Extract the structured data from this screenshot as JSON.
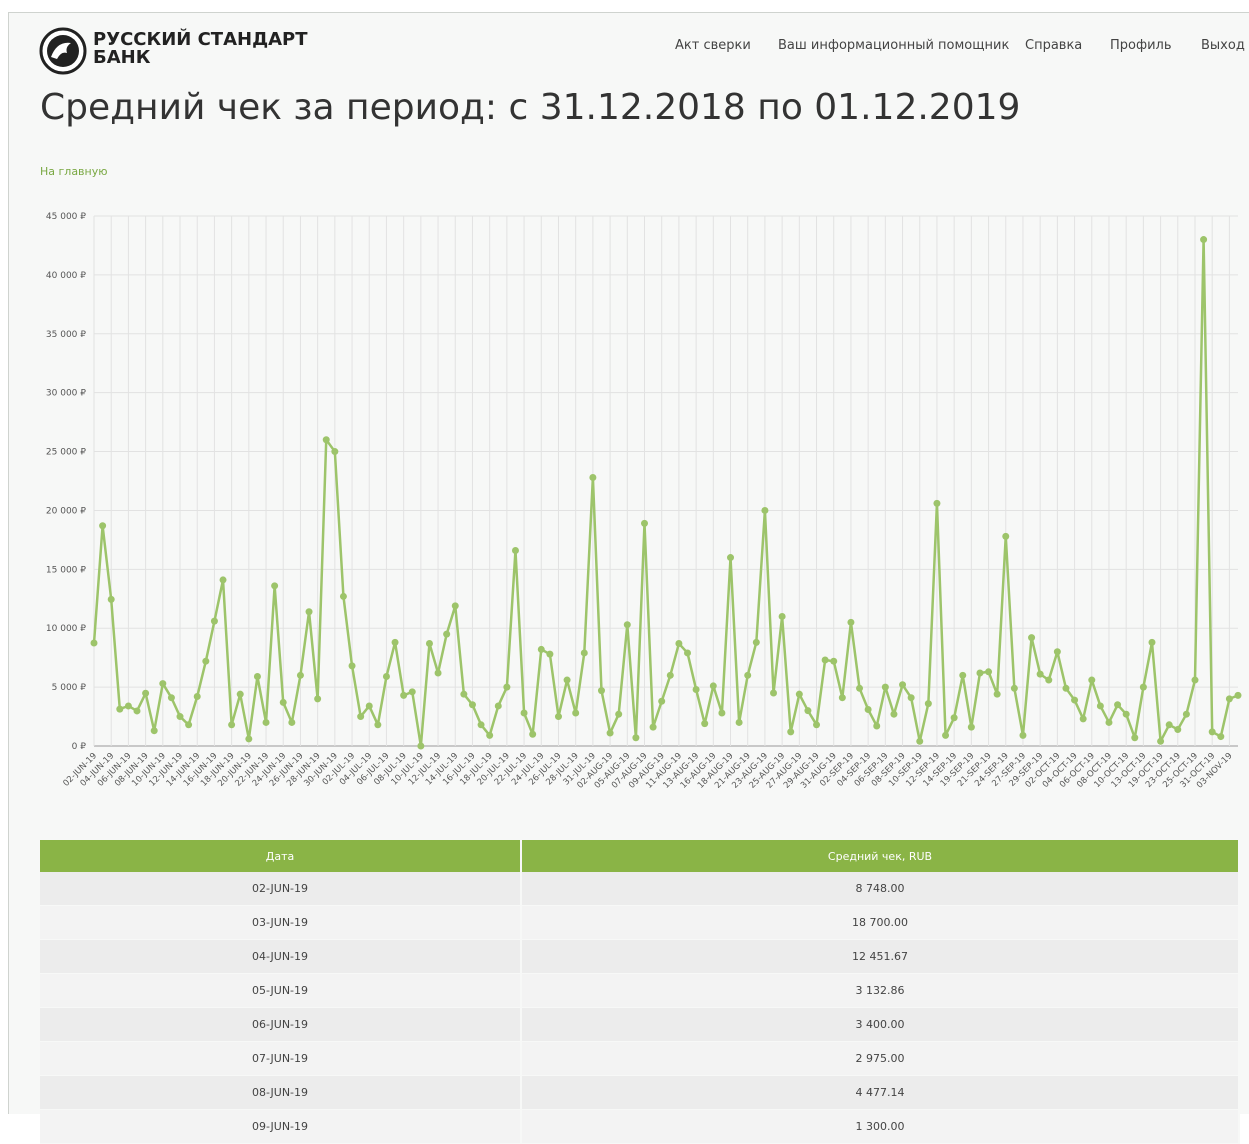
{
  "logo": {
    "line1": "РУССКИЙ СТАНДАРТ",
    "line2": "БАНК"
  },
  "nav": [
    "Акт сверки",
    "Ваш информационный помощник",
    "Справка",
    "Профиль",
    "Выход"
  ],
  "title": "Средний чек за период: с 31.12.2018 по 01.12.2019",
  "home_link": "На главную",
  "chart_data": {
    "type": "line",
    "color": "#9dc46a",
    "grid": true,
    "categories": [
      "02-JUN-19",
      null,
      "04-JUN-19",
      null,
      "06-JUN-19",
      null,
      "08-JUN-19",
      null,
      "10-JUN-19",
      null,
      "12-JUN-19",
      null,
      "14-JUN-19",
      null,
      "16-JUN-19",
      null,
      "18-JUN-19",
      null,
      "20-JUN-19",
      null,
      "22-JUN-19",
      null,
      "24-JUN-19",
      null,
      "26-JUN-19",
      null,
      "28-JUN-19",
      null,
      "30-JUN-19",
      null,
      "02-JUL-19",
      null,
      "04-JUL-19",
      null,
      "06-JUL-19",
      null,
      "08-JUL-19",
      null,
      "10-JUL-19",
      null,
      "12-JUL-19",
      null,
      "14-JUL-19",
      null,
      "16-JUL-19",
      null,
      "18-JUL-19",
      null,
      "20-JUL-19",
      null,
      "22-JUL-19",
      null,
      "24-JUL-19",
      null,
      "26-JUL-19",
      null,
      "28-JUL-19",
      null,
      "31-JUL-19",
      null,
      "02-AUG-19",
      null,
      "05-AUG-19",
      null,
      "07-AUG-19",
      null,
      "09-AUG-19",
      null,
      "11-AUG-19",
      null,
      "13-AUG-19",
      null,
      "16-AUG-19",
      null,
      "18-AUG-19",
      null,
      "21-AUG-19",
      null,
      "23-AUG-19",
      null,
      "25-AUG-19",
      null,
      "27-AUG-19",
      null,
      "29-AUG-19",
      null,
      "31-AUG-19",
      null,
      "02-SEP-19",
      null,
      "04-SEP-19",
      null,
      "06-SEP-19",
      null,
      "08-SEP-19",
      null,
      "10-SEP-19",
      null,
      "12-SEP-19",
      null,
      "14-SEP-19",
      null,
      "19-SEP-19",
      null,
      "21-SEP-19",
      null,
      "24-SEP-19",
      null,
      "27-SEP-19",
      null,
      "29-SEP-19",
      null,
      "02-OCT-19",
      null,
      "04-OCT-19",
      null,
      "06-OCT-19",
      null,
      "08-OCT-19",
      null,
      "10-OCT-19",
      null,
      "13-OCT-19",
      null,
      "19-OCT-19",
      null,
      "23-OCT-19",
      null,
      "25-OCT-19",
      null,
      "31-OCT-19",
      null,
      "03-NOV-19",
      null
    ],
    "values": [
      8748,
      18700,
      12451.67,
      3132.86,
      3400,
      2975,
      4477.14,
      1300,
      5300,
      4100,
      2500,
      1800,
      4200,
      7200,
      10600,
      14100,
      1800,
      4400,
      600,
      5900,
      2000,
      13600,
      3700,
      2000,
      6000,
      11400,
      4000,
      26000,
      25000,
      12700,
      6800,
      2500,
      3400,
      1800,
      5900,
      8800,
      4300,
      4600,
      0,
      8700,
      6200,
      9500,
      11900,
      4400,
      3500,
      1800,
      900,
      3400,
      5000,
      16600,
      2800,
      1000,
      8200,
      7800,
      2500,
      5600,
      2800,
      7900,
      22800,
      4700,
      1100,
      2700,
      10300,
      700,
      18900,
      1600,
      3800,
      6000,
      8700,
      7900,
      4800,
      1900,
      5100,
      2800,
      16000,
      2000,
      6000,
      8800,
      20000,
      4500,
      11000,
      1200,
      4400,
      3000,
      1800,
      7300,
      7200,
      4100,
      10500,
      4900,
      3100,
      1700,
      5000,
      2700,
      5200,
      4100,
      400,
      3600,
      20600,
      900,
      2400,
      6000,
      1600,
      6200,
      6300,
      4400,
      17800,
      4900,
      900,
      9200,
      6100,
      5600,
      8000,
      4900,
      3900,
      2300,
      5600,
      3400,
      2000,
      3500,
      2700,
      700,
      5000,
      8800,
      400,
      1800,
      1400,
      2700,
      5600,
      43000,
      1200,
      800,
      4000,
      4300
    ],
    "ylim": [
      0,
      45000
    ],
    "yticks": [
      {
        "value": 0,
        "label": "0 ₽"
      },
      {
        "value": 5000,
        "label": "5 000 ₽"
      },
      {
        "value": 10000,
        "label": "10 000 ₽"
      },
      {
        "value": 15000,
        "label": "15 000 ₽"
      },
      {
        "value": 20000,
        "label": "20 000 ₽"
      },
      {
        "value": 25000,
        "label": "25 000 ₽"
      },
      {
        "value": 30000,
        "label": "30 000 ₽"
      },
      {
        "value": 35000,
        "label": "35 000 ₽"
      },
      {
        "value": 40000,
        "label": "40 000 ₽"
      },
      {
        "value": 45000,
        "label": "45 000 ₽"
      }
    ]
  },
  "table": {
    "header": [
      "Дата",
      "Средний чек, RUB"
    ],
    "rows": [
      [
        "02-JUN-19",
        "8 748.00"
      ],
      [
        "03-JUN-19",
        "18 700.00"
      ],
      [
        "04-JUN-19",
        "12 451.67"
      ],
      [
        "05-JUN-19",
        "3 132.86"
      ],
      [
        "06-JUN-19",
        "3 400.00"
      ],
      [
        "07-JUN-19",
        "2 975.00"
      ],
      [
        "08-JUN-19",
        "4 477.14"
      ],
      [
        "09-JUN-19",
        "1 300.00"
      ]
    ]
  }
}
